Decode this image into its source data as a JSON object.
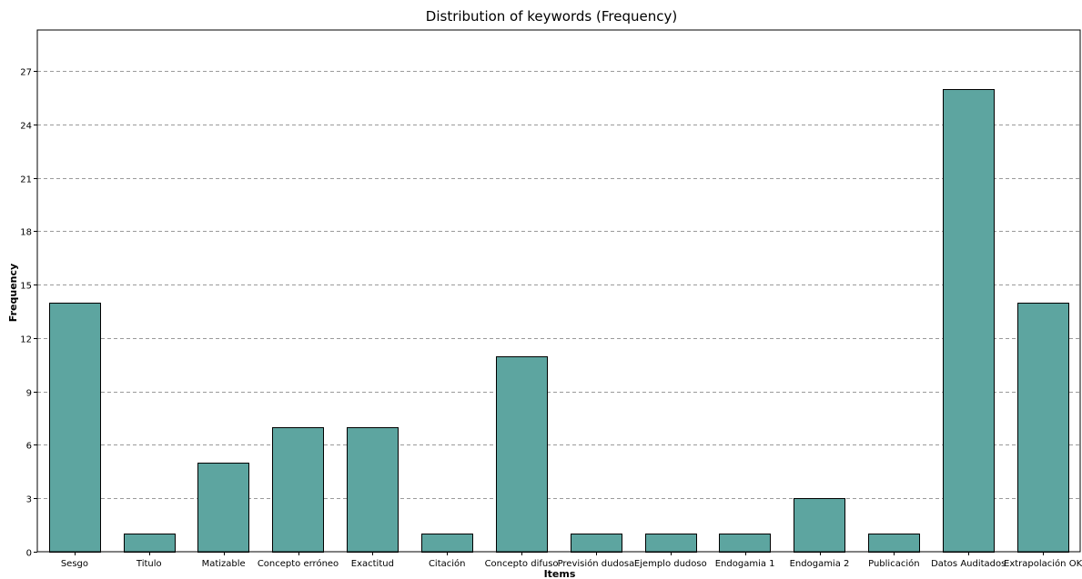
{
  "chart_data": {
    "type": "bar",
    "title": "Distribution of keywords (Frequency)",
    "xlabel": "Items",
    "ylabel": "Frequency",
    "categories": [
      "Sesgo",
      "Titulo",
      "Matizable",
      "Concepto erróneo",
      "Exactitud",
      "Citación",
      "Concepto difuso",
      "Previsión dudosa",
      "Ejemplo dudoso",
      "Endogamia 1",
      "Endogamia 2",
      "Publicación",
      "Datos Auditados",
      "Extrapolación OK"
    ],
    "values": [
      14,
      1,
      5,
      7,
      7,
      1,
      11,
      1,
      1,
      1,
      3,
      1,
      26,
      14
    ],
    "ylim": [
      0,
      29.3
    ],
    "yticks": [
      0,
      3,
      6,
      9,
      12,
      15,
      18,
      21,
      24,
      27
    ],
    "grid": true,
    "bar_color": "#5da5a0"
  }
}
